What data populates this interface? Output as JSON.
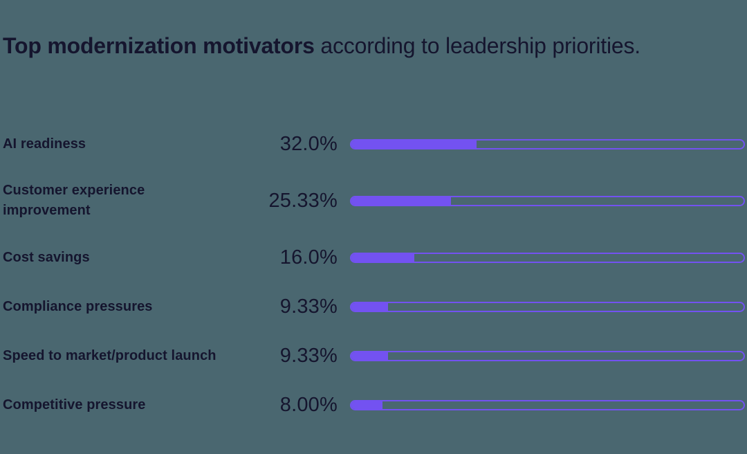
{
  "title": {
    "bold": "Top modernization motivators",
    "regular": " according to leadership priorities."
  },
  "colors": {
    "background": "#4A6770",
    "text": "#15152E",
    "bar_fill": "#7352F1",
    "bar_track_border": "#7352F1"
  },
  "chart_data": {
    "type": "bar",
    "orientation": "horizontal",
    "title": "Top modernization motivators according to leadership priorities.",
    "categories": [
      "AI readiness",
      "Customer experience\nimprovement",
      "Cost savings",
      "Compliance pressures",
      "Speed to market/product launch",
      "Competitive pressure"
    ],
    "values": [
      32.0,
      25.33,
      16.0,
      9.33,
      9.33,
      8.0
    ],
    "value_labels": [
      "32.0%",
      "25.33%",
      "16.0%",
      "9.33%",
      "9.33%",
      "8.00%"
    ],
    "xlim": [
      0,
      100
    ],
    "grid": false,
    "legend": false,
    "bar_style": "pill-track-with-outline"
  }
}
